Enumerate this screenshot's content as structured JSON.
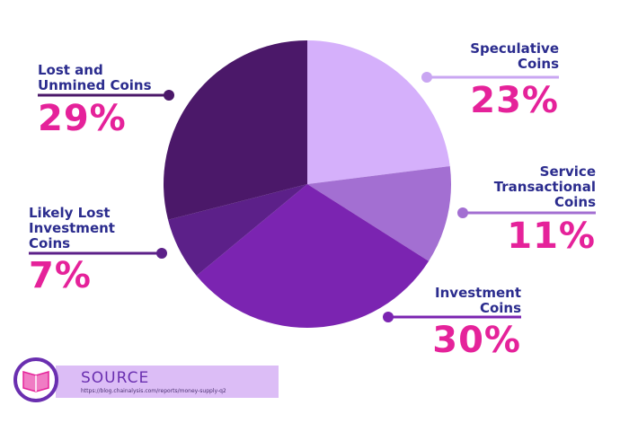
{
  "chart_data": {
    "type": "pie",
    "categories": [
      "Speculative Coins",
      "Service Transactional Coins",
      "Investment Coins",
      "Likely Lost Investment Coins",
      "Lost and Unmined Coins"
    ],
    "values": [
      23,
      11,
      30,
      7,
      29
    ],
    "value_labels": [
      "23%",
      "11%",
      "30%",
      "7%",
      "29%"
    ],
    "colors": [
      "#d5b0fb",
      "#a36fd2",
      "#7b24b1",
      "#5c2089",
      "#4b1869"
    ]
  },
  "source": {
    "title": "SOURCE",
    "url": "https://blog.chainalysis.com/reports/money-supply-q2"
  }
}
